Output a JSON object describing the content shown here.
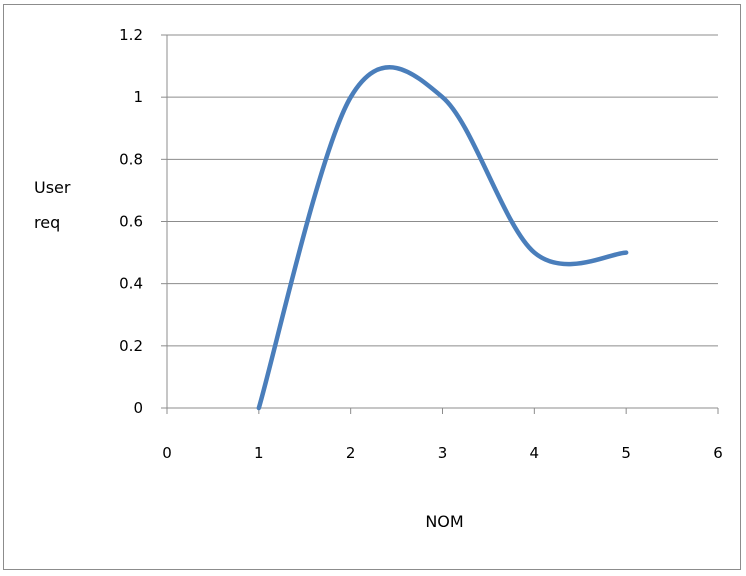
{
  "chart_data": {
    "type": "line",
    "title": "",
    "xlabel": "NOM",
    "ylabel_lines": [
      "User",
      "req"
    ],
    "xlim": [
      0,
      6
    ],
    "ylim": [
      0,
      1.2
    ],
    "x_ticks": [
      "0",
      "1",
      "2",
      "3",
      "4",
      "5",
      "6"
    ],
    "y_ticks": [
      "0",
      "0.2",
      "0.4",
      "0.6",
      "0.8",
      "1",
      "1.2"
    ],
    "grid": "horizontal",
    "legend": "none",
    "series": [
      {
        "x": [
          1,
          2,
          3,
          4,
          5
        ],
        "y": [
          0,
          1,
          1,
          0.5,
          0.5
        ],
        "color": "#4a7ebb",
        "smooth": true
      }
    ]
  }
}
